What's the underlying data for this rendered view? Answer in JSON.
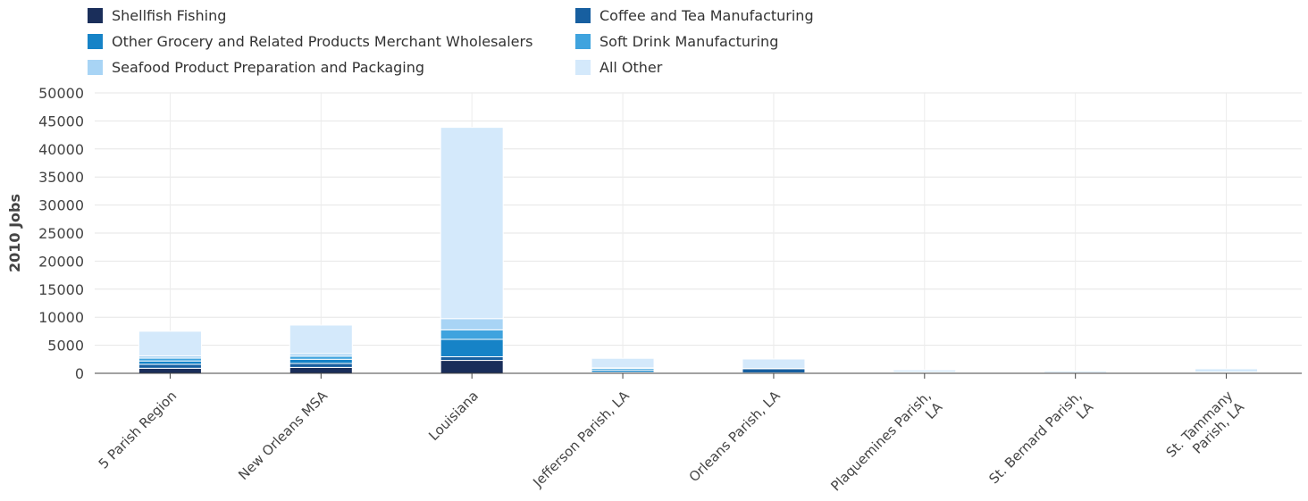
{
  "chart_data": {
    "type": "bar",
    "stacked": true,
    "ylabel": "2010 Jobs",
    "xlabel": "",
    "ylim": [
      0,
      50000
    ],
    "yticks": [
      0,
      5000,
      10000,
      15000,
      20000,
      25000,
      30000,
      35000,
      40000,
      45000,
      50000
    ],
    "grid": true,
    "legend_position": "top-left",
    "categories": [
      [
        "5 Parish Region"
      ],
      [
        "New Orleans MSA"
      ],
      [
        "Louisiana"
      ],
      [
        "Jefferson Parish, LA"
      ],
      [
        "Orleans Parish, LA"
      ],
      [
        "Plaquemines Parish,",
        "LA"
      ],
      [
        "St. Bernard Parish,",
        "LA"
      ],
      [
        "St. Tammany",
        "Parish, LA"
      ]
    ],
    "series": [
      {
        "name": "Shellfish Fishing",
        "color": "#1a2e5a",
        "values": [
          900,
          1050,
          2300,
          120,
          70,
          100,
          60,
          60
        ]
      },
      {
        "name": "Coffee and Tea Manufacturing",
        "color": "#175fa0",
        "values": [
          700,
          700,
          650,
          50,
          750,
          0,
          0,
          0
        ]
      },
      {
        "name": "Other Grocery and Related Products Merchant Wholesalers",
        "color": "#1683c7",
        "values": [
          600,
          750,
          3100,
          400,
          30,
          10,
          20,
          80
        ]
      },
      {
        "name": "Soft Drink Manufacturing",
        "color": "#3fa3de",
        "values": [
          500,
          550,
          1700,
          300,
          0,
          0,
          0,
          50
        ]
      },
      {
        "name": "Seafood Product Preparation and Packaging",
        "color": "#a8d4f5",
        "values": [
          400,
          450,
          2000,
          100,
          30,
          90,
          20,
          30
        ]
      },
      {
        "name": "All Other",
        "color": "#d4e9fb",
        "values": [
          4400,
          5100,
          34100,
          1700,
          1670,
          400,
          300,
          580
        ]
      }
    ]
  }
}
